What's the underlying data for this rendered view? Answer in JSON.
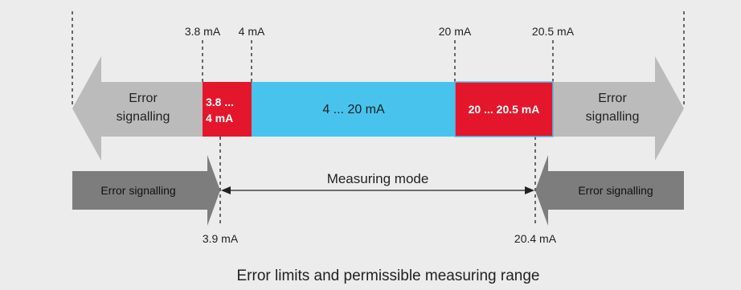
{
  "top_labels": {
    "l38": "3.8 mA",
    "l4": "4 mA",
    "l20": "20 mA",
    "l205": "20.5 mA"
  },
  "bar": {
    "left_arrow": [
      "Error",
      "signalling"
    ],
    "red_left": [
      "3.8 ...",
      "4 mA"
    ],
    "blue_center": "4 ... 20 mA",
    "red_right": "20 ... 20.5 mA",
    "right_arrow": [
      "Error",
      "signalling"
    ]
  },
  "lower": {
    "left_error": "Error signalling",
    "right_error": "Error signalling",
    "measuring_mode": "Measuring mode"
  },
  "bottom_labels": {
    "l39": "3.9 mA",
    "l204": "20.4 mA"
  },
  "caption": "Error limits and permissible measuring range",
  "colors": {
    "background": "#ececec",
    "light_arrow": "#bbbbbb",
    "dark_arrow": "#7d7d7d",
    "red": "#e3162b",
    "blue": "#47c3ee",
    "text": "#222222"
  }
}
